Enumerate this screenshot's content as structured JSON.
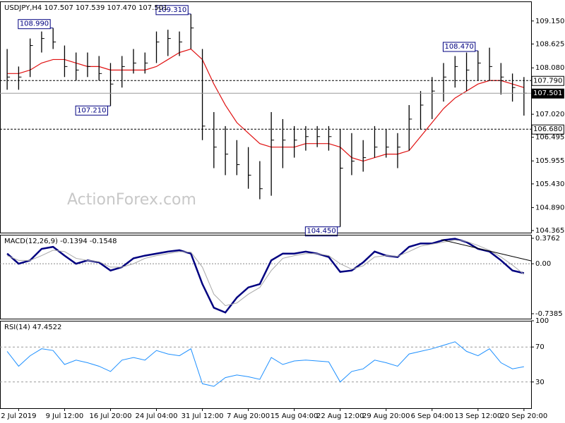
{
  "chart_data": [
    {
      "type": "hlc",
      "title": "USDJPY,H4 107.507 107.539 107.470 107.501",
      "watermark": "ActionForex.com",
      "categories": [
        null,
        "2 Jul 2019",
        null,
        null,
        null,
        "9 Jul 12:00",
        null,
        null,
        null,
        "16 Jul 20:00",
        null,
        null,
        null,
        "24 Jul 04:00",
        null,
        null,
        null,
        "31 Jul 12:00",
        null,
        null,
        null,
        "7 Aug 20:00",
        null,
        null,
        null,
        "15 Aug 04:00",
        null,
        null,
        null,
        "22 Aug 12:00",
        null,
        null,
        null,
        "29 Aug 20:00",
        null,
        null,
        null,
        "6 Sep 04:00",
        null,
        null,
        null,
        "13 Sep 12:00",
        null,
        null,
        null,
        "20 Sep 20:00"
      ],
      "high": [
        108.51,
        108.11,
        108.75,
        108.91,
        108.99,
        108.59,
        108.43,
        108.43,
        108.35,
        108.19,
        108.35,
        108.51,
        108.43,
        108.91,
        108.95,
        108.91,
        109.31,
        108.51,
        107.07,
        106.75,
        106.43,
        106.27,
        105.95,
        107.07,
        106.91,
        106.75,
        106.75,
        106.75,
        106.75,
        106.67,
        106.59,
        106.43,
        106.75,
        106.67,
        106.59,
        107.23,
        107.55,
        107.87,
        108.19,
        108.35,
        108.43,
        108.47,
        108.54,
        108.19,
        107.95,
        107.87
      ],
      "low": [
        107.58,
        107.58,
        107.87,
        108.43,
        108.51,
        107.87,
        107.79,
        107.87,
        107.79,
        107.21,
        107.63,
        107.95,
        107.95,
        108.19,
        108.35,
        108.35,
        108.51,
        106.43,
        105.79,
        105.63,
        105.63,
        105.32,
        105.08,
        105.16,
        105.79,
        106.03,
        106.19,
        106.27,
        106.19,
        104.45,
        105.63,
        105.71,
        106.03,
        106.03,
        105.79,
        106.19,
        106.67,
        106.91,
        107.31,
        107.63,
        107.55,
        107.79,
        107.79,
        107.47,
        107.31,
        106.99
      ],
      "close": [
        107.87,
        107.87,
        108.59,
        108.75,
        108.67,
        108.11,
        108.03,
        108.11,
        107.95,
        107.71,
        108.11,
        108.19,
        108.19,
        108.67,
        108.75,
        108.67,
        108.99,
        106.75,
        106.27,
        106.11,
        105.87,
        105.63,
        105.32,
        106.43,
        106.43,
        106.43,
        106.51,
        106.51,
        106.51,
        105.79,
        105.95,
        106.03,
        106.27,
        106.27,
        106.27,
        106.91,
        107.23,
        107.55,
        107.87,
        108.11,
        108.03,
        108.19,
        108.11,
        107.87,
        107.63,
        107.501
      ],
      "color": "#000000",
      "moving_average": {
        "color": "#e01010",
        "values": [
          107.95,
          107.95,
          108.03,
          108.19,
          108.27,
          108.27,
          108.19,
          108.11,
          108.11,
          108.03,
          108.03,
          108.03,
          108.03,
          108.11,
          108.27,
          108.43,
          108.51,
          108.27,
          107.71,
          107.23,
          106.83,
          106.59,
          106.35,
          106.27,
          106.27,
          106.27,
          106.35,
          106.35,
          106.35,
          106.27,
          106.03,
          105.95,
          106.03,
          106.11,
          106.11,
          106.19,
          106.51,
          106.83,
          107.15,
          107.39,
          107.55,
          107.71,
          107.79,
          107.79,
          107.71,
          107.63
        ]
      },
      "levels": [
        {
          "value": 107.79,
          "label": "107.790",
          "style": "dotted"
        },
        {
          "value": 107.501,
          "label": "107.501",
          "style": "solid"
        },
        {
          "value": 106.68,
          "label": "106.680",
          "style": "dotted"
        }
      ],
      "annotations": [
        {
          "value": 108.99,
          "label": "108.990"
        },
        {
          "value": 109.31,
          "label": "109.310"
        },
        {
          "value": 107.21,
          "label": "107.210"
        },
        {
          "value": 104.45,
          "label": "104.450"
        },
        {
          "value": 108.47,
          "label": "108.470"
        }
      ],
      "ylim": [
        104.317,
        109.597
      ],
      "yticks": [
        {
          "value": 109.15,
          "label": "109.150"
        },
        108.625,
        {
          "value": 108.08,
          "label": "108.080"
        },
        {
          "value": 107.02,
          "label": "107.020"
        },
        106.495,
        105.955,
        {
          "value": 105.43,
          "label": "105.430"
        },
        {
          "value": 104.89,
          "label": "104.890"
        },
        104.365
      ],
      "grid": false
    },
    {
      "type": "line",
      "title": "MACD(12,26,9) -0.1394 -0.1548",
      "series": [
        {
          "color": "#000080",
          "values": [
            0.15,
            0.0,
            0.05,
            0.22,
            0.25,
            0.12,
            0.0,
            0.05,
            0.02,
            -0.1,
            -0.05,
            0.08,
            0.12,
            0.15,
            0.18,
            0.2,
            0.15,
            -0.3,
            -0.65,
            -0.72,
            -0.5,
            -0.35,
            -0.3,
            0.05,
            0.15,
            0.15,
            0.18,
            0.15,
            0.1,
            -0.12,
            -0.1,
            0.02,
            0.18,
            0.12,
            0.1,
            0.25,
            0.3,
            0.3,
            0.35,
            0.37,
            0.32,
            0.22,
            0.18,
            0.05,
            -0.1,
            -0.1394
          ]
        },
        {
          "color": "#a8a8a8",
          "values": [
            0.12,
            0.05,
            0.05,
            0.12,
            0.2,
            0.18,
            0.08,
            0.05,
            0.03,
            -0.05,
            -0.05,
            0.0,
            0.08,
            0.12,
            0.15,
            0.18,
            0.17,
            -0.05,
            -0.45,
            -0.62,
            -0.58,
            -0.45,
            -0.35,
            -0.1,
            0.08,
            0.12,
            0.15,
            0.15,
            0.12,
            0.0,
            -0.08,
            -0.03,
            0.1,
            0.12,
            0.11,
            0.18,
            0.26,
            0.29,
            0.32,
            0.35,
            0.33,
            0.27,
            0.2,
            0.1,
            -0.02,
            -0.1548
          ]
        }
      ],
      "ylim": [
        -0.8114,
        0.4283
      ],
      "yticks": [
        0.3762,
        {
          "value": 0,
          "label": "0.00"
        },
        -0.7385
      ],
      "grid": false,
      "zero_line": true
    },
    {
      "type": "line",
      "title": "RSI(14) 47.4522",
      "series": [
        {
          "color": "#1e90ff",
          "values": [
            65,
            48,
            60,
            68,
            66,
            50,
            55,
            52,
            48,
            42,
            55,
            58,
            55,
            66,
            62,
            60,
            68,
            28,
            25,
            35,
            38,
            36,
            33,
            58,
            50,
            54,
            55,
            54,
            53,
            30,
            42,
            45,
            55,
            52,
            48,
            62,
            65,
            68,
            72,
            76,
            65,
            60,
            68,
            52,
            45,
            47.4522
          ]
        }
      ],
      "ylim": [
        0,
        100
      ],
      "yticks": [
        100,
        70,
        30
      ],
      "grid": true
    }
  ]
}
